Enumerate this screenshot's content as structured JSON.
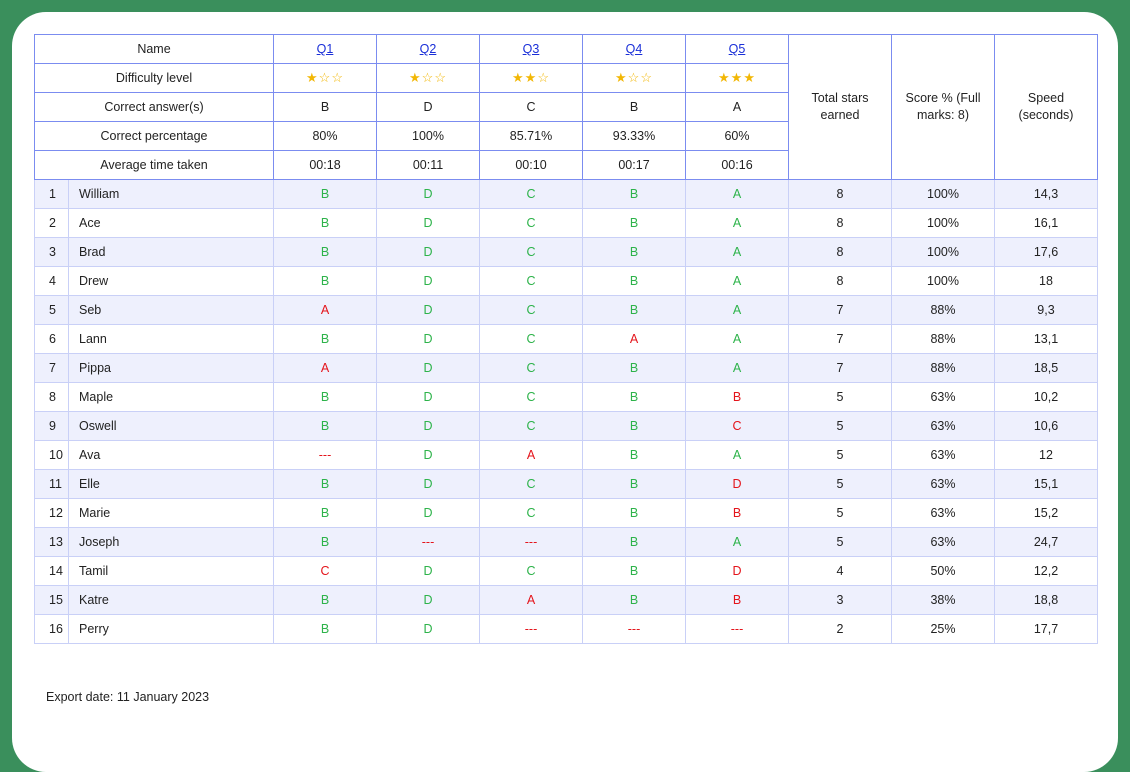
{
  "header": {
    "name_label": "Name",
    "questions": [
      "Q1",
      "Q2",
      "Q3",
      "Q4",
      "Q5"
    ],
    "difficulty_label": "Difficulty level",
    "difficulty": [
      "★☆☆",
      "★☆☆",
      "★★☆",
      "★☆☆",
      "★★★"
    ],
    "correct_label": "Correct answer(s)",
    "correct": [
      "B",
      "D",
      "C",
      "B",
      "A"
    ],
    "pct_label": "Correct percentage",
    "pct": [
      "80%",
      "100%",
      "85.71%",
      "93.33%",
      "60%"
    ],
    "time_label": "Average time taken",
    "time": [
      "00:18",
      "00:11",
      "00:10",
      "00:17",
      "00:16"
    ],
    "total_stars": "Total stars earned",
    "score": "Score % (Full marks: 8)",
    "speed": "Speed (seconds)"
  },
  "rows": [
    {
      "n": "1",
      "name": "William",
      "a": [
        "B",
        "D",
        "C",
        "B",
        "A"
      ],
      "stars": "8",
      "score": "100%",
      "speed": "14,3"
    },
    {
      "n": "2",
      "name": "Ace",
      "a": [
        "B",
        "D",
        "C",
        "B",
        "A"
      ],
      "stars": "8",
      "score": "100%",
      "speed": "16,1"
    },
    {
      "n": "3",
      "name": "Brad",
      "a": [
        "B",
        "D",
        "C",
        "B",
        "A"
      ],
      "stars": "8",
      "score": "100%",
      "speed": "17,6"
    },
    {
      "n": "4",
      "name": "Drew",
      "a": [
        "B",
        "D",
        "C",
        "B",
        "A"
      ],
      "stars": "8",
      "score": "100%",
      "speed": "18"
    },
    {
      "n": "5",
      "name": "Seb",
      "a": [
        "A",
        "D",
        "C",
        "B",
        "A"
      ],
      "stars": "7",
      "score": "88%",
      "speed": "9,3"
    },
    {
      "n": "6",
      "name": "Lann",
      "a": [
        "B",
        "D",
        "C",
        "A",
        "A"
      ],
      "stars": "7",
      "score": "88%",
      "speed": "13,1"
    },
    {
      "n": "7",
      "name": "Pippa",
      "a": [
        "A",
        "D",
        "C",
        "B",
        "A"
      ],
      "stars": "7",
      "score": "88%",
      "speed": "18,5"
    },
    {
      "n": "8",
      "name": "Maple",
      "a": [
        "B",
        "D",
        "C",
        "B",
        "B"
      ],
      "stars": "5",
      "score": "63%",
      "speed": "10,2"
    },
    {
      "n": "9",
      "name": "Oswell",
      "a": [
        "B",
        "D",
        "C",
        "B",
        "C"
      ],
      "stars": "5",
      "score": "63%",
      "speed": "10,6"
    },
    {
      "n": "10",
      "name": "Ava",
      "a": [
        "---",
        "D",
        "A",
        "B",
        "A"
      ],
      "stars": "5",
      "score": "63%",
      "speed": "12"
    },
    {
      "n": "11",
      "name": "Elle",
      "a": [
        "B",
        "D",
        "C",
        "B",
        "D"
      ],
      "stars": "5",
      "score": "63%",
      "speed": "15,1"
    },
    {
      "n": "12",
      "name": "Marie",
      "a": [
        "B",
        "D",
        "C",
        "B",
        "B"
      ],
      "stars": "5",
      "score": "63%",
      "speed": "15,2"
    },
    {
      "n": "13",
      "name": "Joseph",
      "a": [
        "B",
        "---",
        "---",
        "B",
        "A"
      ],
      "stars": "5",
      "score": "63%",
      "speed": "24,7"
    },
    {
      "n": "14",
      "name": "Tamil",
      "a": [
        "C",
        "D",
        "C",
        "B",
        "D"
      ],
      "stars": "4",
      "score": "50%",
      "speed": "12,2"
    },
    {
      "n": "15",
      "name": "Katre",
      "a": [
        "B",
        "D",
        "A",
        "B",
        "B"
      ],
      "stars": "3",
      "score": "38%",
      "speed": "18,8"
    },
    {
      "n": "16",
      "name": "Perry",
      "a": [
        "B",
        "D",
        "---",
        "---",
        "---"
      ],
      "stars": "2",
      "score": "25%",
      "speed": "17,7"
    }
  ],
  "export_date": "Export date: 11 January 2023",
  "colors": {
    "correct": "#2db34a",
    "incorrect": "#e4141b",
    "frame": "#3a8f5c",
    "border": "#7b8cf0",
    "stars": "#f2b705"
  }
}
